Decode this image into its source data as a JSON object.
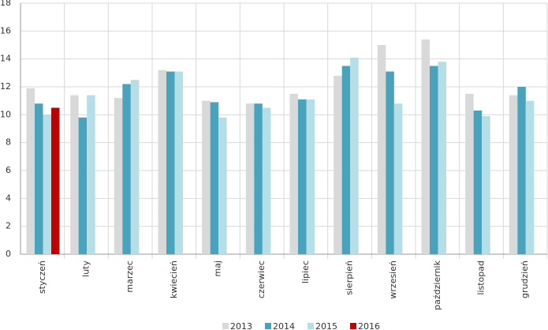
{
  "chart_data": {
    "type": "bar",
    "categories": [
      "styczeń",
      "luty",
      "marzec",
      "kwiecień",
      "maj",
      "czerwiec",
      "lipiec",
      "sierpień",
      "wrzesień",
      "październik",
      "listopad",
      "grudzień"
    ],
    "series": [
      {
        "name": "2013",
        "color": "#d9d9d9",
        "values": [
          11.9,
          11.4,
          11.2,
          13.2,
          11.0,
          10.8,
          11.5,
          12.8,
          15.0,
          15.4,
          11.5,
          11.4
        ]
      },
      {
        "name": "2014",
        "color": "#4aa3bc",
        "values": [
          10.8,
          9.8,
          12.2,
          13.1,
          10.9,
          10.8,
          11.1,
          13.5,
          13.1,
          13.5,
          10.3,
          12.0
        ]
      },
      {
        "name": "2015",
        "color": "#b4dfe8",
        "values": [
          10.0,
          11.4,
          12.5,
          13.1,
          9.8,
          10.5,
          11.1,
          14.1,
          10.8,
          13.8,
          9.9,
          11.0
        ]
      },
      {
        "name": "2016",
        "color": "#c00000",
        "values": [
          10.5,
          null,
          null,
          null,
          null,
          null,
          null,
          null,
          null,
          null,
          null,
          null
        ]
      }
    ],
    "ylim": [
      0,
      18
    ],
    "yticks": [
      0,
      2,
      4,
      6,
      8,
      10,
      12,
      14,
      16,
      18
    ],
    "grid": true
  }
}
